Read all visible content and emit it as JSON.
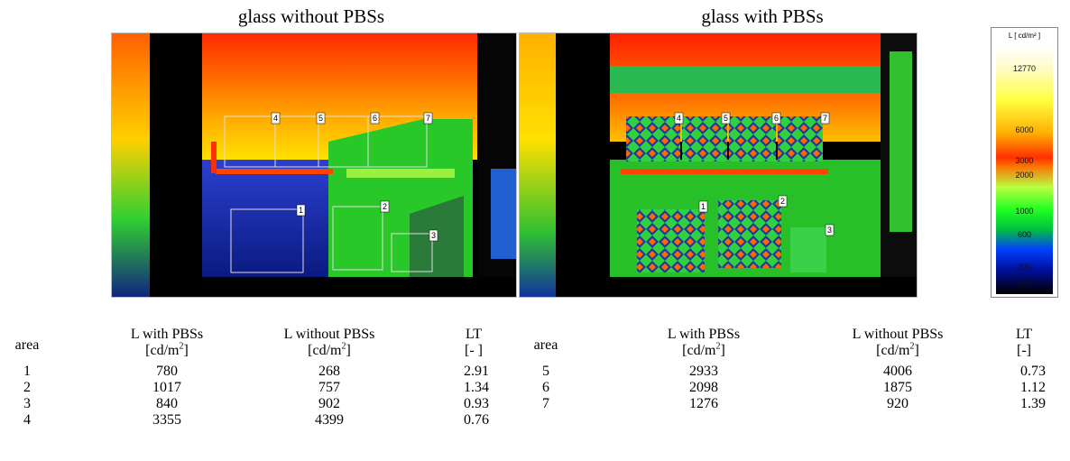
{
  "captions": {
    "left": "glass without PBSs",
    "right": "glass with PBSs"
  },
  "legend": {
    "title": "L [ cd/m² ]",
    "ticks": [
      "12770",
      "6000",
      "3000",
      "2000",
      "1000",
      "600",
      "300",
      "200"
    ]
  },
  "area_labels": {
    "left_panel": [
      "4",
      "5",
      "6",
      "7",
      "1",
      "2",
      "3"
    ],
    "right_panel": [
      "4",
      "5",
      "6",
      "7",
      "1",
      "2",
      "3"
    ]
  },
  "table": {
    "headers": {
      "area": "area",
      "l_with": "L with PBSs",
      "l_without": "L without PBSs",
      "lt": "LT",
      "unit_l": "[cd/m",
      "unit_sup": "2",
      "unit_close": "]",
      "unit_lt_left": "[- ]",
      "unit_lt_right": "[-]"
    },
    "left_rows": [
      {
        "area": "1",
        "l_with": "780",
        "l_without": "268",
        "lt": "2.91"
      },
      {
        "area": "2",
        "l_with": "1017",
        "l_without": "757",
        "lt": "1.34"
      },
      {
        "area": "3",
        "l_with": "840",
        "l_without": "902",
        "lt": "0.93"
      },
      {
        "area": "4",
        "l_with": "3355",
        "l_without": "4399",
        "lt": "0.76"
      }
    ],
    "right_rows": [
      {
        "area": "5",
        "l_with": "2933",
        "l_without": "4006",
        "lt": "0.73"
      },
      {
        "area": "6",
        "l_with": "2098",
        "l_without": "1875",
        "lt": "1.12"
      },
      {
        "area": "7",
        "l_with": "1276",
        "l_without": "920",
        "lt": "1.39"
      }
    ]
  }
}
